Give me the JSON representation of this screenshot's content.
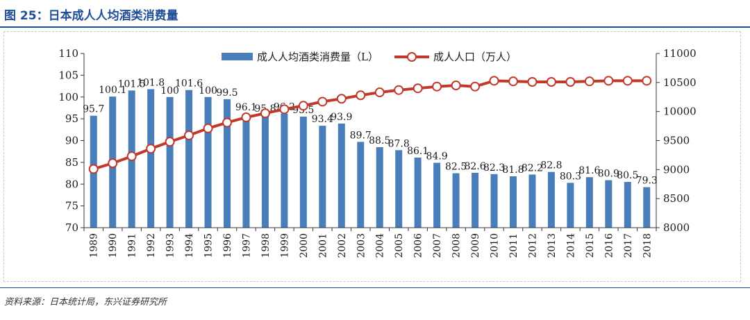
{
  "title": "图 25：日本成人人均酒类消费量",
  "source": "资料来源：日本统计局，东兴证券研究所",
  "chart_data": {
    "type": "bar+line",
    "categories": [
      "1989",
      "1990",
      "1991",
      "1992",
      "1993",
      "1994",
      "1995",
      "1996",
      "1997",
      "1998",
      "1999",
      "2000",
      "2001",
      "2002",
      "2003",
      "2004",
      "2005",
      "2006",
      "2007",
      "2008",
      "2009",
      "2010",
      "2011",
      "2012",
      "2013",
      "2014",
      "2015",
      "2016",
      "2017",
      "2018"
    ],
    "series": [
      {
        "name": "成人人均酒类消费量（L）",
        "type": "bar",
        "axis": "left",
        "color": "#4a7ebb",
        "values": [
          95.7,
          100.1,
          101.5,
          101.8,
          100,
          101.6,
          100,
          99.5,
          96.1,
          95.8,
          96.2,
          95.5,
          93.4,
          93.9,
          89.7,
          88.5,
          87.8,
          86.1,
          84.9,
          82.5,
          82.6,
          82.3,
          81.8,
          82.2,
          82.8,
          80.3,
          81.6,
          80.9,
          80.5,
          79.3
        ],
        "labels": [
          "95.7",
          "100.1",
          "101.5",
          "101.8",
          "100",
          "101.6",
          "100",
          "99.5",
          "96.1",
          "95.8",
          "96.2",
          "95.5",
          "93.4",
          "93.9",
          "89.7",
          "88.5",
          "87.8",
          "86.1",
          "84.9",
          "82.5",
          "82.6",
          "82.3",
          "81.8",
          "82.2",
          "82.8",
          "80.3",
          "81.6",
          "80.9",
          "80.5",
          "79.3"
        ]
      },
      {
        "name": "成人人口（万人）",
        "type": "line",
        "axis": "right",
        "color": "#c0392b",
        "values": [
          9010,
          9110,
          9230,
          9360,
          9480,
          9590,
          9710,
          9810,
          9900,
          9970,
          10040,
          10100,
          10170,
          10220,
          10280,
          10330,
          10370,
          10400,
          10430,
          10450,
          10430,
          10530,
          10520,
          10510,
          10510,
          10510,
          10520,
          10530,
          10530,
          10530
        ]
      }
    ],
    "left_axis": {
      "ylim": [
        70,
        110
      ],
      "ticks": [
        "70",
        "75",
        "80",
        "85",
        "90",
        "95",
        "100",
        "105",
        "110"
      ]
    },
    "right_axis": {
      "ylim": [
        8000,
        11000
      ],
      "ticks": [
        "8000",
        "8500",
        "9000",
        "9500",
        "10000",
        "10500",
        "11000"
      ]
    },
    "legend_position": "top-center",
    "grid": false
  }
}
